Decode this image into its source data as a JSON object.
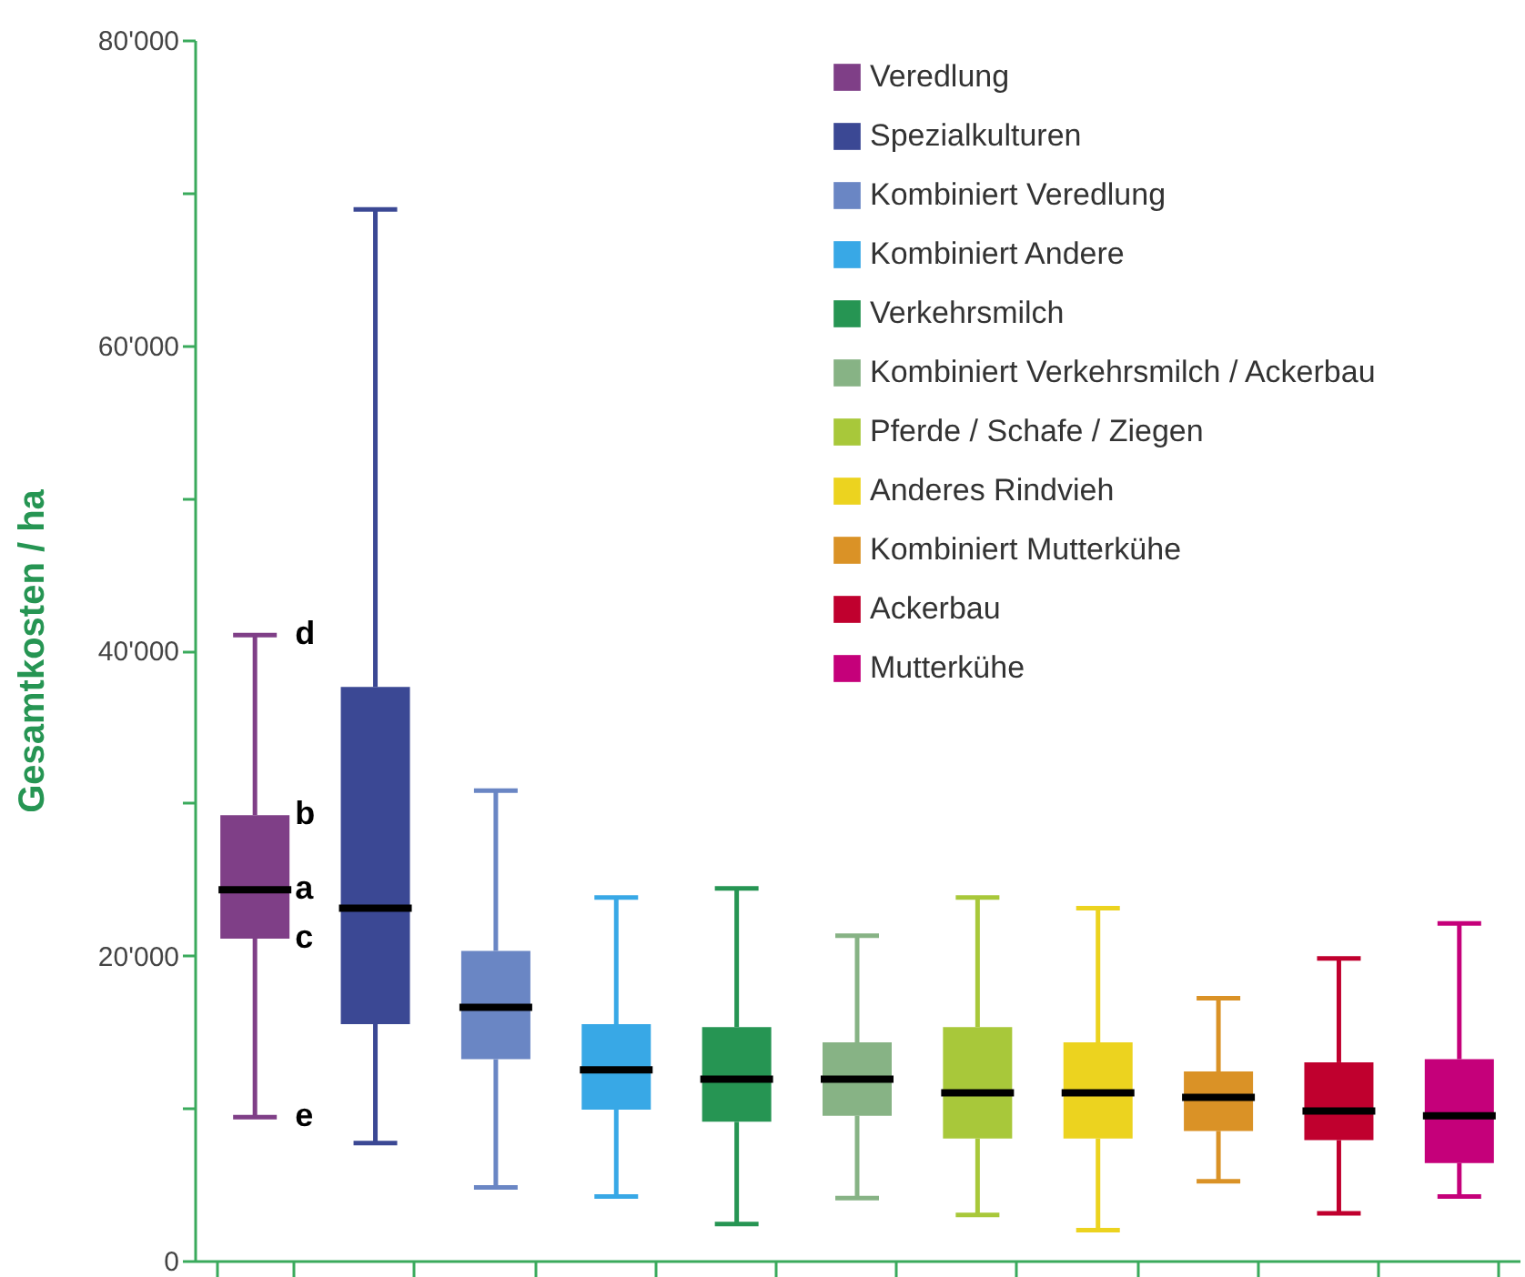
{
  "chart_data": {
    "type": "box",
    "ylabel": "Gesamtkosten / ha",
    "categories": [
      null,
      null,
      null,
      null,
      null,
      null,
      null,
      null,
      null,
      null,
      null
    ],
    "ylim": [
      0,
      80000
    ],
    "yticks": [
      0,
      {
        "value": 10000,
        "label": null
      },
      {
        "value": 20000,
        "label": "20'000"
      },
      {
        "value": 30000,
        "label": null
      },
      {
        "value": 40000,
        "label": "40'000"
      },
      {
        "value": 50000,
        "label": null
      },
      {
        "value": 60000,
        "label": "60'000"
      },
      {
        "value": 70000,
        "label": null
      },
      {
        "value": 80000,
        "label": "80'000"
      }
    ],
    "grid": false,
    "legend": "top right",
    "series": [
      {
        "name": "Veredlung",
        "color": "#7f3f87",
        "boxes": [
          {
            "low": 9400,
            "q1": 21100,
            "median": 24300,
            "q3": 29200,
            "high": 41000
          },
          null,
          null,
          null,
          null,
          null,
          null,
          null,
          null,
          null,
          null
        ]
      },
      {
        "name": "Spezialkulturen",
        "color": "#3b4894",
        "boxes": [
          null,
          {
            "low": 7700,
            "q1": 15500,
            "median": 23100,
            "q3": 37600,
            "high": 68900
          },
          null,
          null,
          null,
          null,
          null,
          null,
          null,
          null,
          null
        ]
      },
      {
        "name": "Kombiniert Veredlung",
        "color": "#6a86c4",
        "boxes": [
          null,
          null,
          {
            "low": 4800,
            "q1": 13200,
            "median": 16600,
            "q3": 20300,
            "high": 30800
          },
          null,
          null,
          null,
          null,
          null,
          null,
          null,
          null
        ]
      },
      {
        "name": "Kombiniert Andere",
        "color": "#38a8e6",
        "boxes": [
          null,
          null,
          null,
          {
            "low": 4200,
            "q1": 9900,
            "median": 12500,
            "q3": 15500,
            "high": 23800
          },
          null,
          null,
          null,
          null,
          null,
          null,
          null
        ]
      },
      {
        "name": "Verkehrsmilch",
        "color": "#269553",
        "boxes": [
          null,
          null,
          null,
          null,
          {
            "low": 2400,
            "q1": 9100,
            "median": 11900,
            "q3": 15300,
            "high": 24400
          },
          null,
          null,
          null,
          null,
          null,
          null
        ]
      },
      {
        "name": "Kombiniert Verkehrsmilch / Ackerbau",
        "color": "#87b385",
        "boxes": [
          null,
          null,
          null,
          null,
          null,
          {
            "low": 4100,
            "q1": 9500,
            "median": 11900,
            "q3": 14300,
            "high": 21300
          },
          null,
          null,
          null,
          null,
          null
        ]
      },
      {
        "name": "Pferde / Schafe / Ziegen",
        "color": "#a8c83a",
        "boxes": [
          null,
          null,
          null,
          null,
          null,
          null,
          {
            "low": 3000,
            "q1": 8000,
            "median": 11000,
            "q3": 15300,
            "high": 23800
          },
          null,
          null,
          null,
          null
        ]
      },
      {
        "name": "Anderes Rindvieh",
        "color": "#ecd31f",
        "boxes": [
          null,
          null,
          null,
          null,
          null,
          null,
          null,
          {
            "low": 2000,
            "q1": 8000,
            "median": 11000,
            "q3": 14300,
            "high": 23100
          },
          null,
          null,
          null
        ]
      },
      {
        "name": "Kombiniert Mutterkühe",
        "color": "#da9226",
        "boxes": [
          null,
          null,
          null,
          null,
          null,
          null,
          null,
          null,
          {
            "low": 5200,
            "q1": 8500,
            "median": 10700,
            "q3": 12400,
            "high": 17200
          },
          null,
          null
        ]
      },
      {
        "name": "Ackerbau",
        "color": "#c0002e",
        "boxes": [
          null,
          null,
          null,
          null,
          null,
          null,
          null,
          null,
          null,
          {
            "low": 3100,
            "q1": 7900,
            "median": 9800,
            "q3": 13000,
            "high": 19800
          },
          null
        ]
      },
      {
        "name": "Mutterkühe",
        "color": "#c5007a",
        "boxes": [
          null,
          null,
          null,
          null,
          null,
          null,
          null,
          null,
          null,
          null,
          {
            "low": 4200,
            "q1": 6400,
            "median": 9500,
            "q3": 13200,
            "high": 22100
          }
        ]
      }
    ],
    "annotations": [
      "d",
      "b",
      "a",
      "c",
      "e"
    ]
  }
}
